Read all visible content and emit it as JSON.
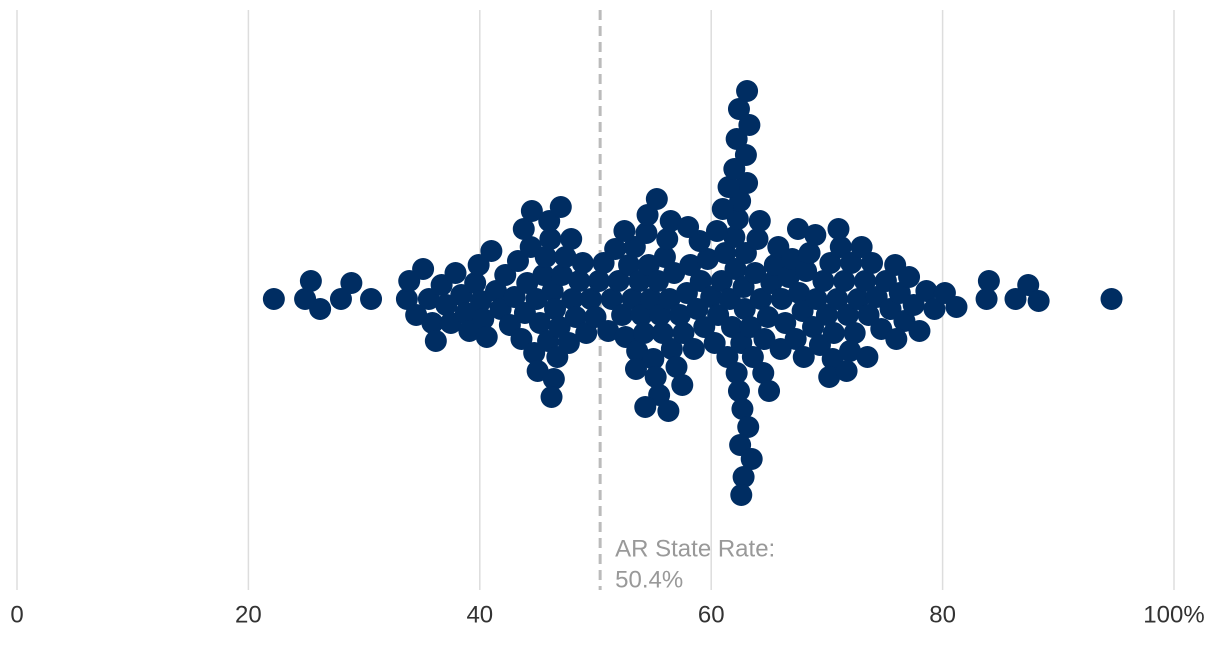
{
  "chart_data": {
    "type": "beeswarm",
    "values": [
      22.2,
      24.9,
      25.4,
      26.2,
      28.0,
      28.9,
      30.6,
      33.7,
      33.9,
      34.5,
      35.1,
      35.6,
      35.9,
      36.2,
      36.7,
      37.1,
      37.5,
      37.9,
      38.4,
      38.8,
      39.1,
      39.6,
      39.9,
      40.1,
      40.3,
      40.6,
      41.0,
      41.4,
      41.8,
      42.2,
      42.6,
      43.0,
      43.3,
      43.6,
      43.9,
      44.1,
      44.4,
      44.7,
      44.9,
      45.2,
      45.5,
      45.7,
      45.9,
      46.1,
      46.3,
      46.5,
      46.7,
      46.9,
      47.1,
      47.4,
      47.7,
      48.0,
      48.3,
      48.6,
      48.9,
      49.2,
      49.6,
      50.0,
      50.3,
      50.7,
      51.1,
      51.4,
      51.7,
      52.0,
      52.3,
      52.6,
      52.9,
      53.2,
      53.4,
      53.6,
      53.8,
      54.0,
      54.2,
      54.4,
      54.6,
      54.8,
      55.0,
      55.2,
      55.4,
      55.6,
      55.8,
      56.0,
      56.2,
      56.4,
      56.6,
      56.8,
      57.0,
      57.3,
      57.6,
      57.9,
      58.2,
      58.5,
      58.8,
      59.1,
      59.4,
      59.7,
      60.0,
      60.3,
      60.6,
      60.9,
      61.2,
      61.4,
      61.6,
      61.8,
      62.0,
      62.1,
      62.2,
      62.3,
      62.4,
      62.5,
      62.6,
      62.7,
      62.8,
      62.9,
      63.0,
      63.1,
      63.2,
      63.4,
      63.6,
      63.8,
      64.0,
      64.3,
      64.6,
      64.9,
      65.2,
      65.5,
      65.8,
      66.1,
      66.4,
      66.7,
      67.0,
      67.3,
      67.6,
      67.9,
      68.2,
      68.5,
      68.8,
      69.1,
      69.4,
      69.7,
      70.0,
      70.3,
      70.6,
      70.9,
      71.2,
      71.5,
      71.8,
      72.1,
      72.4,
      72.7,
      73.0,
      73.3,
      73.6,
      73.9,
      74.3,
      74.7,
      75.1,
      75.5,
      75.9,
      76.3,
      76.7,
      77.1,
      77.5,
      78.0,
      78.6,
      79.3,
      80.2,
      81.2,
      83.8,
      84.0,
      86.3,
      87.4,
      88.3,
      94.6,
      45.0,
      46.0,
      46.4,
      47.0,
      53.5,
      54.5,
      55.5,
      56.5,
      61.5,
      62.0,
      62.5,
      63.0,
      63.5,
      64.5,
      68.0,
      69.0,
      70.5,
      71.0,
      72.0,
      61.0,
      59.0,
      58.0,
      66.0,
      52.5,
      43.8,
      47.9,
      55.3,
      57.5,
      62.2,
      63.3,
      62.8,
      64.2,
      73.5,
      76.0,
      60.5,
      65.0,
      67.5,
      62.4,
      62.6,
      63.1,
      54.3,
      56.3,
      70.2,
      71.7,
      46.2,
      44.5
    ],
    "color": "#002d62",
    "xlim": [
      0,
      100
    ],
    "xticks": [
      0,
      20,
      40,
      60,
      80,
      {
        "value": 100,
        "label": "100%"
      }
    ],
    "grid": true,
    "reference_line": {
      "value": 50.4,
      "title": "AR State Rate:",
      "label": "50.4%"
    }
  }
}
